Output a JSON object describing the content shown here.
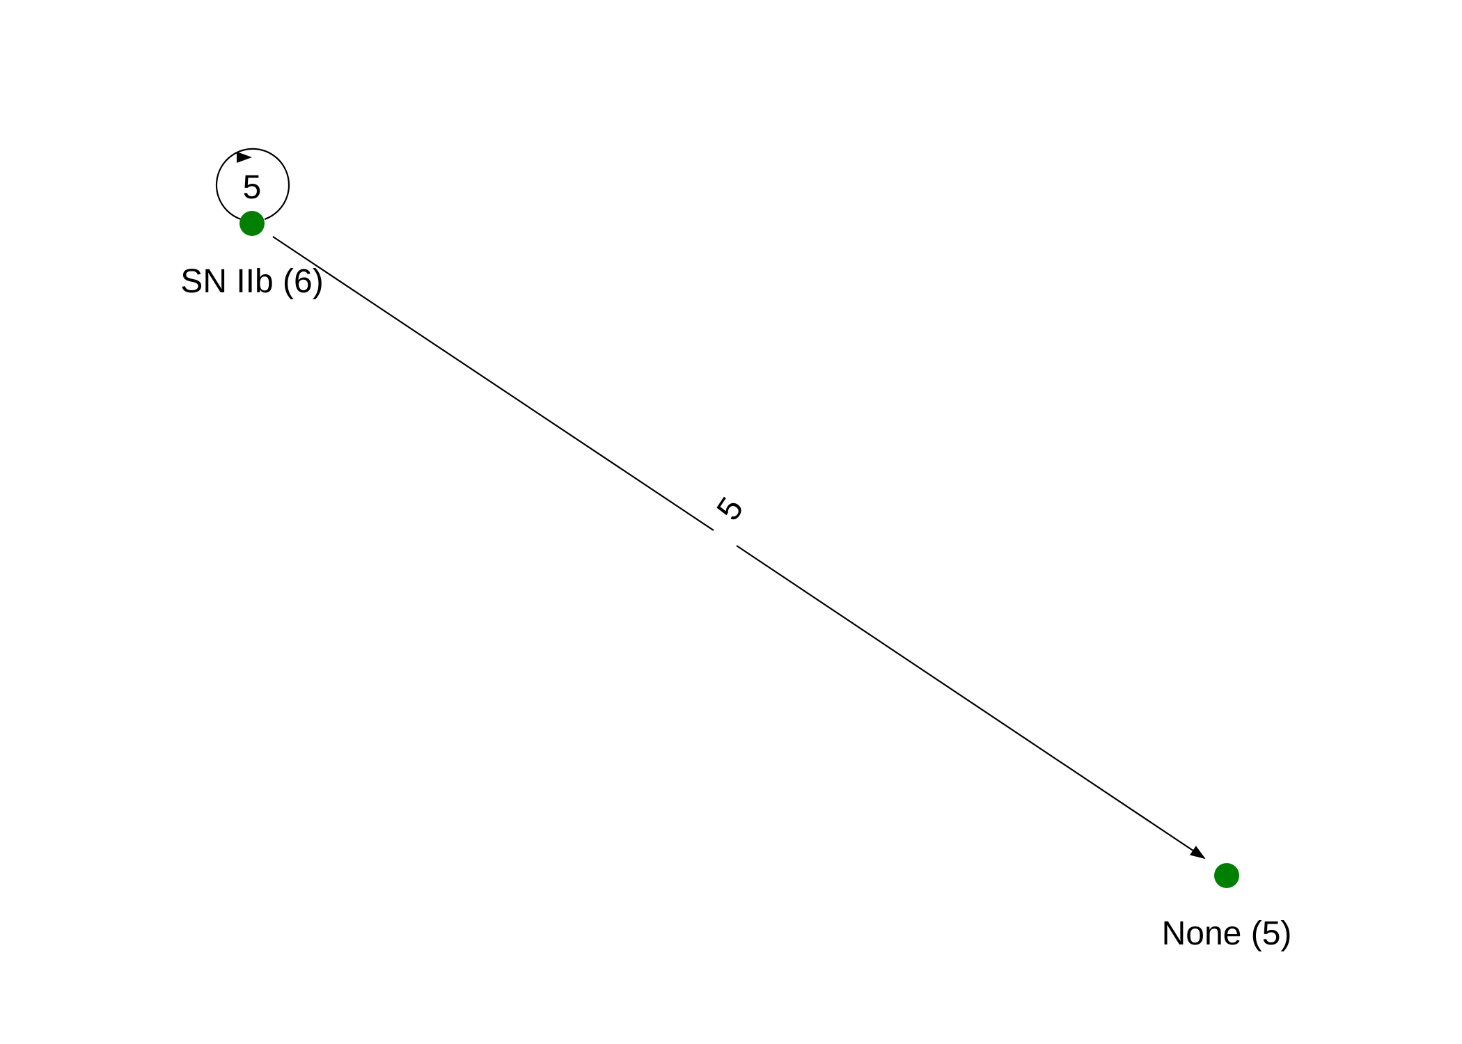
{
  "graph": {
    "directed": true,
    "node_color": "#008000",
    "edge_color": "#000000",
    "nodes": [
      {
        "id": "sn-iib",
        "label": "SN IIb (6)"
      },
      {
        "id": "none",
        "label": "None (5)"
      }
    ],
    "edges": [
      {
        "source": "sn-iib",
        "target": "sn-iib",
        "label": "5"
      },
      {
        "source": "sn-iib",
        "target": "none",
        "label": "5"
      }
    ]
  }
}
